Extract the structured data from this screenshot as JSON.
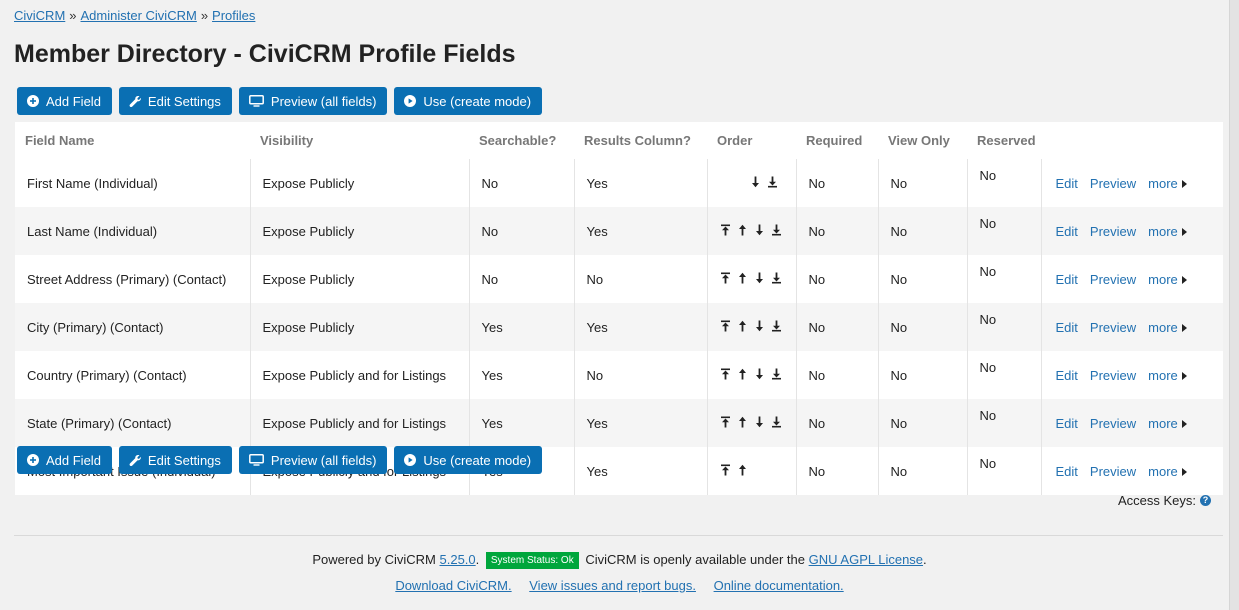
{
  "breadcrumb": {
    "items": [
      "CiviCRM",
      "Administer CiviCRM",
      "Profiles"
    ],
    "separator": "»"
  },
  "page_title": "Member Directory - CiviCRM Profile Fields",
  "buttons": {
    "add_field": "Add Field",
    "edit_settings": "Edit Settings",
    "preview_all": "Preview (all fields)",
    "use_create": "Use (create mode)"
  },
  "table": {
    "headers": [
      "Field Name",
      "Visibility",
      "Searchable?",
      "Results Column?",
      "Order",
      "Required",
      "View Only",
      "Reserved",
      ""
    ],
    "rows": [
      {
        "field": "First Name (Individual)",
        "visibility": "Expose Publicly",
        "searchable": "No",
        "results": "Yes",
        "order": [
          "down",
          "bottom"
        ],
        "required": "No",
        "view_only": "No",
        "reserved": "No"
      },
      {
        "field": "Last Name (Individual)",
        "visibility": "Expose Publicly",
        "searchable": "No",
        "results": "Yes",
        "order": [
          "top",
          "up",
          "down",
          "bottom"
        ],
        "required": "No",
        "view_only": "No",
        "reserved": "No"
      },
      {
        "field": "Street Address (Primary) (Contact)",
        "visibility": "Expose Publicly",
        "searchable": "No",
        "results": "No",
        "order": [
          "top",
          "up",
          "down",
          "bottom"
        ],
        "required": "No",
        "view_only": "No",
        "reserved": "No"
      },
      {
        "field": "City (Primary) (Contact)",
        "visibility": "Expose Publicly",
        "searchable": "Yes",
        "results": "Yes",
        "order": [
          "top",
          "up",
          "down",
          "bottom"
        ],
        "required": "No",
        "view_only": "No",
        "reserved": "No"
      },
      {
        "field": "Country (Primary) (Contact)",
        "visibility": "Expose Publicly and for Listings",
        "searchable": "Yes",
        "results": "No",
        "order": [
          "top",
          "up",
          "down",
          "bottom"
        ],
        "required": "No",
        "view_only": "No",
        "reserved": "No"
      },
      {
        "field": "State (Primary) (Contact)",
        "visibility": "Expose Publicly and for Listings",
        "searchable": "Yes",
        "results": "Yes",
        "order": [
          "top",
          "up",
          "down",
          "bottom"
        ],
        "required": "No",
        "view_only": "No",
        "reserved": "No"
      },
      {
        "field": "Most Important Issue (Individual)",
        "visibility": "Expose Publicly and for Listings",
        "searchable": "Yes",
        "results": "Yes",
        "order": [
          "top",
          "up"
        ],
        "required": "No",
        "view_only": "No",
        "reserved": "No"
      }
    ],
    "actions": {
      "edit": "Edit",
      "preview": "Preview",
      "more": "more"
    }
  },
  "access_keys": {
    "label": "Access Keys:",
    "icon": "question-icon"
  },
  "footer": {
    "powered_by": "Powered by CiviCRM",
    "version": "5.25.0",
    "status_badge": "System Status: Ok",
    "license_text": "CiviCRM is openly available under the",
    "license_link": "GNU AGPL License",
    "links": [
      "Download CiviCRM.",
      "View issues and report bugs.",
      "Online documentation."
    ]
  },
  "colors": {
    "button": "#0a6fb3",
    "link": "#2271b1",
    "status_ok": "#00a63c"
  }
}
